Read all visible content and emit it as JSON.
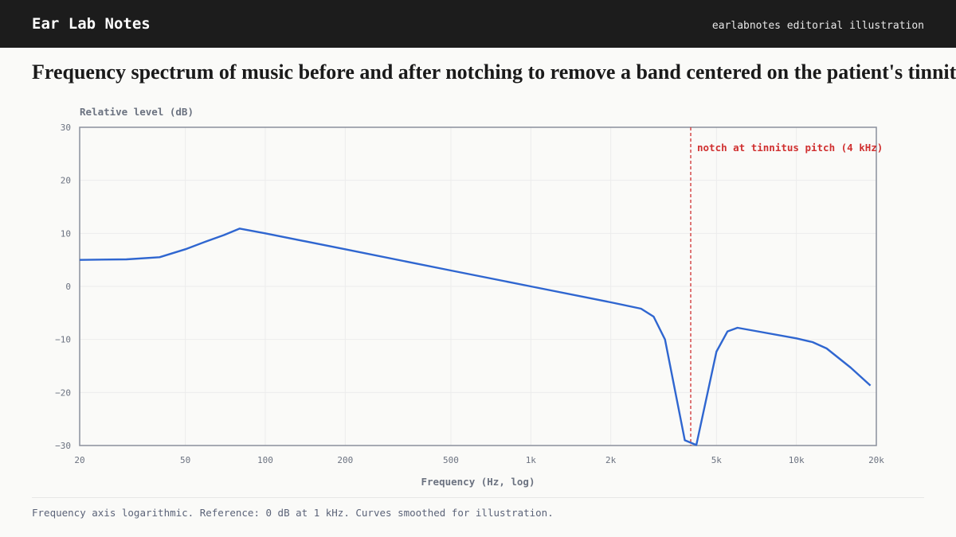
{
  "header": {
    "brand": "Ear Lab Notes",
    "tagline": "earlabnotes editorial illustration"
  },
  "chart_data": {
    "type": "line",
    "title": "Frequency spectrum of music before and after notching to remove a band centered on the patient's tinnit",
    "x_label": "Frequency (Hz, log)",
    "y_label": "Relative level (dB)",
    "x_scale": "log",
    "xlim": [
      20,
      20000
    ],
    "xticks": [
      20,
      50,
      100,
      200,
      500,
      {
        "value": 1000,
        "label": "1k"
      },
      {
        "value": 2000,
        "label": "2k"
      },
      {
        "value": 5000,
        "label": "5k"
      },
      {
        "value": 10000,
        "label": "10k"
      },
      {
        "value": 20000,
        "label": "20k"
      }
    ],
    "ylim": [
      -30,
      30
    ],
    "yticks": [
      {
        "value": -30,
        "label": "−30"
      },
      {
        "value": -20,
        "label": "−20"
      },
      {
        "value": -10,
        "label": "−10"
      },
      0,
      10,
      20,
      30
    ],
    "grid": true,
    "series": [
      {
        "color": "#2f66d0",
        "x": [
          20,
          30,
          40,
          50,
          60,
          70,
          80,
          100,
          200,
          500,
          1000,
          2000,
          2600,
          2900,
          3200,
          3800,
          4200,
          5000,
          5500,
          6000,
          7000,
          10000,
          11500,
          13000,
          16000,
          19000
        ],
        "values": [
          5.0,
          5.1,
          5.5,
          7.0,
          8.5,
          9.7,
          10.9,
          10.0,
          7.0,
          3.0,
          0.0,
          -3.0,
          -4.2,
          -5.7,
          -10.0,
          -29.0,
          -29.9,
          -12.3,
          -8.5,
          -7.8,
          -8.4,
          -9.8,
          -10.5,
          -11.7,
          -15.3,
          -18.7
        ]
      }
    ],
    "annotations": [
      {
        "x": 4000,
        "text": "notch at tinnitus pitch (4 kHz)",
        "color": "#d03030"
      }
    ]
  },
  "footer_note": "Frequency axis logarithmic. Reference: 0 dB at 1 kHz. Curves smoothed for illustration."
}
